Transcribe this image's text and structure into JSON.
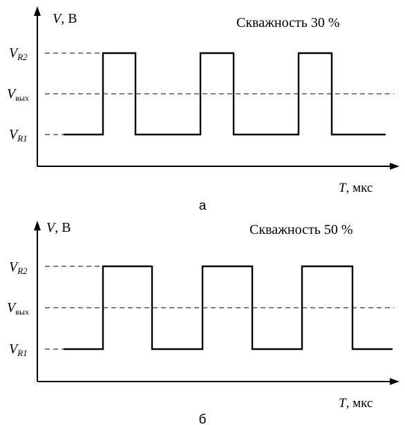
{
  "diagram_a": {
    "y_axis_label": {
      "italic": "V",
      "rest": ", В"
    },
    "x_axis_label": {
      "italic": "T",
      "rest": ", мкс"
    },
    "title": "Скважность 30 %",
    "level_high": {
      "main": "V",
      "sub": "R2"
    },
    "level_out": {
      "main": "V",
      "sub": "вых"
    },
    "level_low": {
      "main": "V",
      "sub": "R1"
    },
    "caption": "а",
    "duty_cycle_percent": 30
  },
  "diagram_b": {
    "y_axis_label": {
      "italic": "V",
      "rest": ", В"
    },
    "x_axis_label": {
      "italic": "T",
      "rest": ", мкс"
    },
    "title": "Скважность 50 %",
    "level_high": {
      "main": "V",
      "sub": "R2"
    },
    "level_out": {
      "main": "V",
      "sub": "вых"
    },
    "level_low": {
      "main": "V",
      "sub": "R1"
    },
    "caption": "б",
    "duty_cycle_percent": 50
  },
  "colors": {
    "line": "#000000",
    "background": "#ffffff"
  }
}
